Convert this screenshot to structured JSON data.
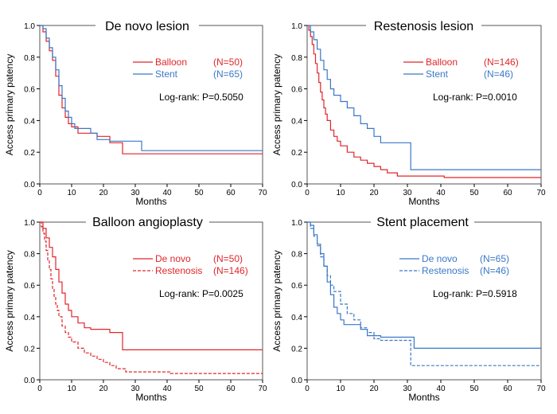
{
  "chart_data": [
    {
      "type": "line",
      "title": "De novo lesion",
      "xlabel": "Months",
      "ylabel": "Access primary patency",
      "xlim": [
        0,
        70
      ],
      "ylim": [
        0,
        1.0
      ],
      "xticks": [
        "0",
        "10",
        "20",
        "30",
        "40",
        "50",
        "60",
        "70"
      ],
      "yticks": [
        "0.0",
        "0.2",
        "0.4",
        "0.6",
        "0.8",
        "1.0"
      ],
      "annotation": "Log-rank:  P=0.5050",
      "series": [
        {
          "name": "Balloon",
          "n_label": "(N=50)",
          "color": "#e0262b",
          "dash": "solid",
          "x": [
            0,
            1,
            2,
            3,
            4,
            5,
            6,
            7,
            8,
            9,
            10,
            12,
            14,
            18,
            22,
            26,
            70
          ],
          "y": [
            1.0,
            0.96,
            0.9,
            0.84,
            0.78,
            0.68,
            0.56,
            0.48,
            0.42,
            0.38,
            0.36,
            0.32,
            0.32,
            0.3,
            0.26,
            0.19,
            0.19
          ]
        },
        {
          "name": "Stent",
          "n_label": "(N=65)",
          "color": "#3a78c7",
          "dash": "solid",
          "x": [
            0,
            1,
            2,
            3,
            4,
            5,
            6,
            7,
            8,
            9,
            10,
            11,
            13,
            16,
            18,
            22,
            32,
            70
          ],
          "y": [
            1.0,
            0.98,
            0.92,
            0.86,
            0.8,
            0.72,
            0.62,
            0.54,
            0.46,
            0.42,
            0.38,
            0.35,
            0.35,
            0.32,
            0.28,
            0.27,
            0.21,
            0.21
          ]
        }
      ]
    },
    {
      "type": "line",
      "title": "Restenosis lesion",
      "xlabel": "Months",
      "ylabel": "Access primary patency",
      "xlim": [
        0,
        70
      ],
      "ylim": [
        0,
        1.0
      ],
      "xticks": [
        "0",
        "10",
        "20",
        "30",
        "40",
        "50",
        "60",
        "70"
      ],
      "yticks": [
        "0.0",
        "0.2",
        "0.4",
        "0.6",
        "0.8",
        "1.0"
      ],
      "annotation": "Log-rank:  P=0.0010",
      "series": [
        {
          "name": "Balloon",
          "n_label": "(N=146)",
          "color": "#e0262b",
          "dash": "solid",
          "x": [
            0,
            0.5,
            1,
            1.5,
            2,
            2.5,
            3,
            3.5,
            4,
            4.5,
            5,
            5.5,
            6,
            7,
            8,
            9,
            10,
            12,
            14,
            16,
            18,
            20,
            22,
            24,
            27,
            31,
            41,
            70
          ],
          "y": [
            1.0,
            0.97,
            0.93,
            0.88,
            0.82,
            0.76,
            0.7,
            0.64,
            0.58,
            0.53,
            0.48,
            0.44,
            0.4,
            0.34,
            0.3,
            0.27,
            0.24,
            0.2,
            0.17,
            0.15,
            0.13,
            0.11,
            0.09,
            0.07,
            0.05,
            0.05,
            0.04,
            0.04
          ]
        },
        {
          "name": "Stent",
          "n_label": "(N=46)",
          "color": "#3a78c7",
          "dash": "solid",
          "x": [
            0,
            1,
            2,
            3,
            4,
            5,
            6,
            7,
            8,
            10,
            12,
            14,
            16,
            18,
            20,
            22,
            31,
            70
          ],
          "y": [
            1.0,
            0.96,
            0.91,
            0.85,
            0.78,
            0.72,
            0.66,
            0.6,
            0.56,
            0.52,
            0.48,
            0.43,
            0.38,
            0.35,
            0.3,
            0.26,
            0.09,
            0.09
          ]
        }
      ]
    },
    {
      "type": "line",
      "title": "Balloon angioplasty",
      "xlabel": "Months",
      "ylabel": "Access primary patency",
      "xlim": [
        0,
        70
      ],
      "ylim": [
        0,
        1.0
      ],
      "xticks": [
        "0",
        "10",
        "20",
        "30",
        "40",
        "50",
        "60",
        "70"
      ],
      "yticks": [
        "0.0",
        "0.2",
        "0.4",
        "0.6",
        "0.8",
        "1.0"
      ],
      "annotation": "Log-rank:  P=0.0025",
      "series": [
        {
          "name": "De novo",
          "n_label": "(N=50)",
          "color": "#e0262b",
          "dash": "solid",
          "x": [
            0,
            1,
            2,
            3,
            4,
            5,
            6,
            7,
            8,
            9,
            10,
            12,
            14,
            16,
            20,
            22,
            26,
            70
          ],
          "y": [
            1.0,
            0.96,
            0.9,
            0.84,
            0.78,
            0.7,
            0.62,
            0.55,
            0.48,
            0.44,
            0.4,
            0.36,
            0.33,
            0.32,
            0.32,
            0.3,
            0.19,
            0.19
          ]
        },
        {
          "name": "Restenosis",
          "n_label": "(N=146)",
          "color": "#e0262b",
          "dash": "dashed",
          "x": [
            0,
            0.5,
            1,
            1.5,
            2,
            2.5,
            3,
            3.5,
            4,
            4.5,
            5,
            5.5,
            6,
            7,
            8,
            9,
            10,
            12,
            14,
            16,
            18,
            20,
            22,
            24,
            27,
            31,
            41,
            70
          ],
          "y": [
            1.0,
            0.97,
            0.93,
            0.88,
            0.82,
            0.76,
            0.7,
            0.64,
            0.58,
            0.53,
            0.48,
            0.44,
            0.4,
            0.34,
            0.3,
            0.27,
            0.24,
            0.2,
            0.17,
            0.15,
            0.13,
            0.11,
            0.09,
            0.07,
            0.05,
            0.05,
            0.04,
            0.04
          ]
        }
      ]
    },
    {
      "type": "line",
      "title": "Stent placement",
      "xlabel": "Months",
      "ylabel": "Access primary patency",
      "xlim": [
        0,
        70
      ],
      "ylim": [
        0,
        1.0
      ],
      "xticks": [
        "0",
        "10",
        "20",
        "30",
        "40",
        "50",
        "60",
        "70"
      ],
      "yticks": [
        "0.0",
        "0.2",
        "0.4",
        "0.6",
        "0.8",
        "1.0"
      ],
      "annotation": "Log-rank:  P=0.5918",
      "series": [
        {
          "name": "De novo",
          "n_label": "(N=65)",
          "color": "#3a78c7",
          "dash": "solid",
          "x": [
            0,
            1,
            2,
            3,
            4,
            5,
            6,
            7,
            8,
            9,
            10,
            11,
            13,
            16,
            18,
            22,
            32,
            70
          ],
          "y": [
            1.0,
            0.98,
            0.92,
            0.86,
            0.8,
            0.72,
            0.62,
            0.54,
            0.46,
            0.42,
            0.38,
            0.35,
            0.35,
            0.32,
            0.28,
            0.27,
            0.2,
            0.2
          ]
        },
        {
          "name": "Restenosis",
          "n_label": "(N=46)",
          "color": "#3a78c7",
          "dash": "dashed",
          "x": [
            0,
            1,
            2,
            3,
            4,
            5,
            6,
            7,
            8,
            10,
            12,
            14,
            16,
            18,
            20,
            22,
            31,
            70
          ],
          "y": [
            1.0,
            0.96,
            0.91,
            0.85,
            0.78,
            0.72,
            0.66,
            0.6,
            0.56,
            0.48,
            0.42,
            0.38,
            0.33,
            0.3,
            0.26,
            0.25,
            0.09,
            0.09
          ]
        }
      ]
    }
  ]
}
